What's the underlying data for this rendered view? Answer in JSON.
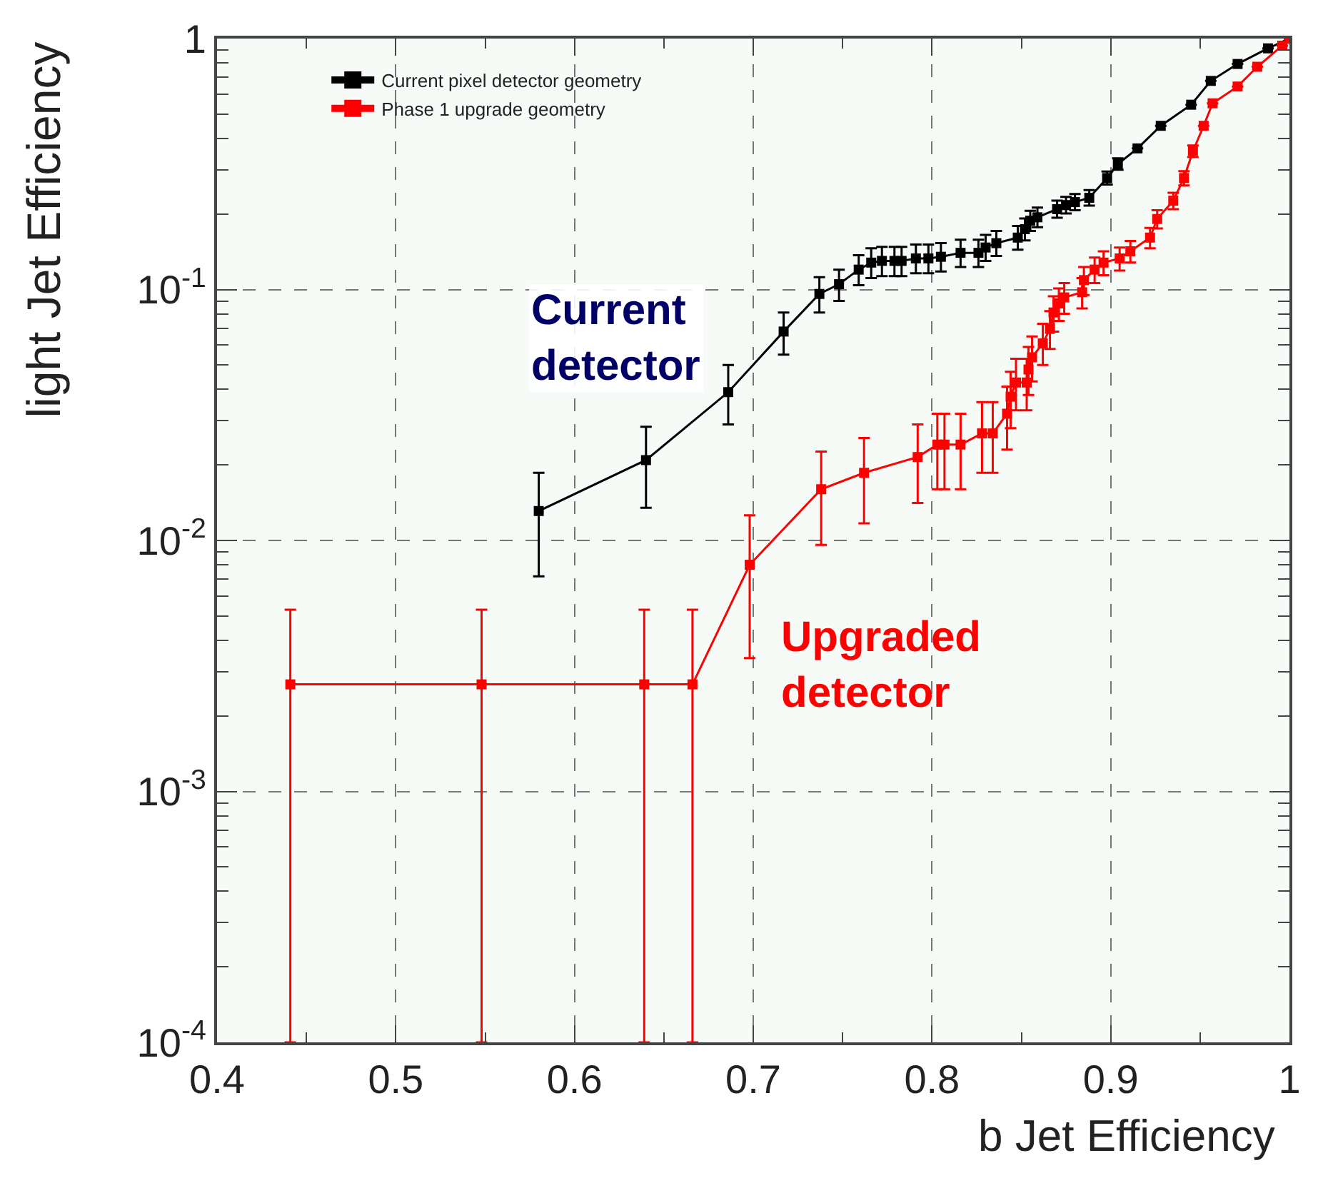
{
  "chart_data": {
    "type": "line",
    "xlabel": "b Jet Efficiency",
    "ylabel": "light Jet Efficiency",
    "log": "y",
    "grid": true,
    "legend": "top left",
    "marker": "square",
    "line_style": "solid",
    "xlim": [
      0.4,
      1.0
    ],
    "xticks": [
      0.4,
      0.5,
      0.6,
      0.7,
      0.8,
      0.9,
      {
        "value": 1.0,
        "label": "1"
      }
    ],
    "ylim": [
      0.0001,
      1
    ],
    "yticks": [
      {
        "value": 0.0001,
        "label": "10$^{-4}$"
      },
      {
        "value": 0.001,
        "label": "10$^{-3}$"
      },
      {
        "value": 0.01,
        "label": "10$^{-2}$"
      },
      {
        "value": 0.1,
        "label": "10$^{-1}$"
      },
      1
    ],
    "series": [
      {
        "name": "Current pixel detector geometry",
        "color": "#000000",
        "x": [
          0.58,
          0.64,
          0.686,
          0.717,
          0.737,
          0.748,
          0.759,
          0.766,
          0.772,
          0.779,
          0.783,
          0.791,
          0.798,
          0.805,
          0.816,
          0.826,
          0.83,
          0.836,
          0.848,
          0.852,
          0.855,
          0.859,
          0.87,
          0.875,
          0.88,
          0.888,
          0.898,
          0.904,
          0.915,
          0.928,
          0.945,
          0.956,
          0.971,
          0.988,
          1.0
        ],
        "values": [
          0.0131,
          0.0209,
          0.039,
          0.068,
          0.096,
          0.105,
          0.12,
          0.128,
          0.13,
          0.13,
          0.13,
          0.133,
          0.133,
          0.135,
          0.14,
          0.14,
          0.147,
          0.153,
          0.161,
          0.174,
          0.188,
          0.194,
          0.209,
          0.217,
          0.223,
          0.232,
          0.278,
          0.316,
          0.365,
          0.449,
          0.545,
          0.678,
          0.792,
          0.914,
          1.0
        ],
        "errors": [
          [
            0.0072,
            0.0186
          ],
          [
            0.0135,
            0.0284
          ],
          [
            0.029,
            0.05
          ],
          [
            0.055,
            0.081
          ],
          [
            0.081,
            0.112
          ],
          [
            0.09,
            0.12
          ],
          [
            0.104,
            0.137
          ],
          [
            0.111,
            0.146
          ],
          [
            0.113,
            0.148
          ],
          [
            0.113,
            0.148
          ],
          [
            0.113,
            0.148
          ],
          [
            0.116,
            0.151
          ],
          [
            0.116,
            0.151
          ],
          [
            0.118,
            0.153
          ],
          [
            0.123,
            0.158
          ],
          [
            0.123,
            0.158
          ],
          [
            0.13,
            0.165
          ],
          [
            0.136,
            0.171
          ],
          [
            0.144,
            0.179
          ],
          [
            0.157,
            0.192
          ],
          [
            0.171,
            0.206
          ],
          [
            0.177,
            0.212
          ],
          [
            0.193,
            0.226
          ],
          [
            0.201,
            0.234
          ],
          [
            0.207,
            0.24
          ],
          [
            0.216,
            0.249
          ],
          [
            0.262,
            0.295
          ],
          [
            0.3,
            0.333
          ],
          null,
          null,
          null,
          null,
          null,
          null,
          null
        ]
      },
      {
        "name": "Phase 1 upgrade geometry",
        "color": "#ff0000",
        "x": [
          0.441,
          0.548,
          0.639,
          0.666,
          0.698,
          0.738,
          0.762,
          0.792,
          0.803,
          0.807,
          0.816,
          0.828,
          0.834,
          0.842,
          0.844,
          0.847,
          0.853,
          0.854,
          0.856,
          0.862,
          0.866,
          0.868,
          0.871,
          0.874,
          0.884,
          0.885,
          0.891,
          0.896,
          0.905,
          0.911,
          0.922,
          0.926,
          0.935,
          0.941,
          0.946,
          0.952,
          0.957,
          0.971,
          0.982,
          0.996,
          1.0
        ],
        "values": [
          0.00267,
          0.00267,
          0.00267,
          0.00267,
          0.008,
          0.016,
          0.0186,
          0.0215,
          0.0241,
          0.0241,
          0.0241,
          0.0267,
          0.0267,
          0.032,
          0.0374,
          0.0426,
          0.0426,
          0.048,
          0.0537,
          0.061,
          0.0697,
          0.081,
          0.088,
          0.093,
          0.0975,
          0.109,
          0.12,
          0.128,
          0.133,
          0.142,
          0.161,
          0.191,
          0.226,
          0.278,
          0.356,
          0.449,
          0.552,
          0.644,
          0.772,
          0.937,
          1.0
        ],
        "errors": [
          [
            0.0001,
            0.0053
          ],
          [
            0.0001,
            0.0053
          ],
          [
            0.0001,
            0.0053
          ],
          [
            0.0001,
            0.0053
          ],
          [
            0.0034,
            0.0126
          ],
          [
            0.0096,
            0.0226
          ],
          [
            0.0117,
            0.0256
          ],
          [
            0.0141,
            0.029
          ],
          [
            0.016,
            0.032
          ],
          [
            0.016,
            0.032
          ],
          [
            0.016,
            0.032
          ],
          [
            0.0186,
            0.0356
          ],
          [
            0.0186,
            0.0356
          ],
          [
            0.023,
            0.041
          ],
          [
            0.028,
            0.047
          ],
          [
            0.033,
            0.053
          ],
          [
            0.033,
            0.053
          ],
          [
            0.038,
            0.059
          ],
          [
            0.043,
            0.065
          ],
          [
            0.05,
            0.073
          ],
          [
            0.058,
            0.082
          ],
          [
            0.068,
            0.094
          ],
          [
            0.075,
            0.101
          ],
          [
            0.08,
            0.106
          ],
          [
            0.084,
            0.111
          ],
          [
            0.095,
            0.123
          ],
          [
            0.106,
            0.134
          ],
          [
            0.114,
            0.142
          ],
          [
            0.119,
            0.147
          ],
          [
            0.128,
            0.156
          ],
          [
            0.146,
            0.176
          ],
          [
            0.175,
            0.207
          ],
          [
            0.209,
            0.243
          ],
          [
            0.26,
            0.296
          ],
          [
            0.337,
            0.375
          ],
          null,
          null,
          null,
          null,
          null,
          null
        ]
      }
    ],
    "annotations": [
      "Current\ndetector",
      "Upgraded\ndetector"
    ]
  }
}
